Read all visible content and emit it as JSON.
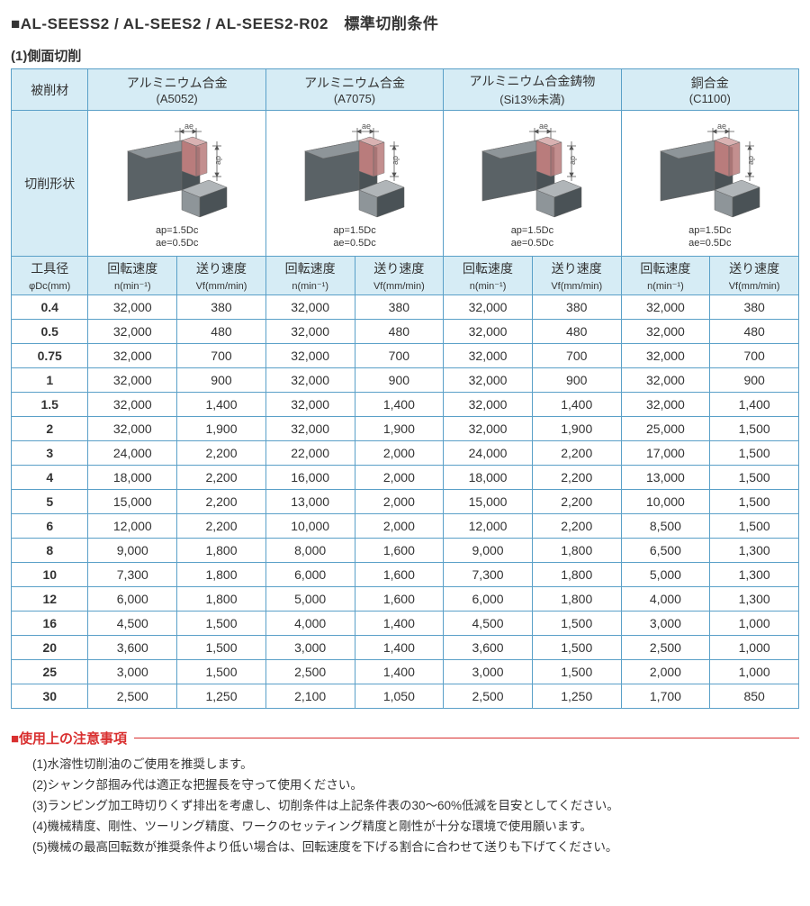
{
  "title": "■AL-SEESS2 / AL-SEES2 / AL-SEES2-R02　標準切削条件",
  "section": "(1)側面切削",
  "table": {
    "row_labels": {
      "material": "被削材",
      "shape": "切削形状",
      "tool_dia": "工具径",
      "tool_dia_unit": "φDc(mm)"
    },
    "col_headers": {
      "rpm": "回転速度",
      "rpm_unit": "n(min⁻¹)",
      "feed": "送り速度",
      "feed_unit": "Vf(mm/min)"
    },
    "materials": [
      {
        "name": "アルミニウム合金",
        "sub": "(A5052)"
      },
      {
        "name": "アルミニウム合金",
        "sub": "(A7075)"
      },
      {
        "name": "アルミニウム合金鋳物",
        "sub": "(Si13%未満)"
      },
      {
        "name": "銅合金",
        "sub": "(C1100)"
      }
    ],
    "shape_caption": {
      "l1": "ap=1.5Dc",
      "l2": "ae=0.5Dc"
    },
    "diagram_labels": {
      "ae": "ae",
      "ap": "ap"
    },
    "diagram_colors": {
      "block_top": "#8e9599",
      "block_front": "#5a6266",
      "block_side": "#4a5256",
      "cut_body": "#b97c7c",
      "cut_top": "#d9b2b2",
      "step_top": "#b0b5b8",
      "step_front": "#8e9599",
      "outline": "#666666",
      "dim": "#555555"
    },
    "rows": [
      {
        "dia": "0.4",
        "v": [
          [
            "32,000",
            "380"
          ],
          [
            "32,000",
            "380"
          ],
          [
            "32,000",
            "380"
          ],
          [
            "32,000",
            "380"
          ]
        ]
      },
      {
        "dia": "0.5",
        "v": [
          [
            "32,000",
            "480"
          ],
          [
            "32,000",
            "480"
          ],
          [
            "32,000",
            "480"
          ],
          [
            "32,000",
            "480"
          ]
        ]
      },
      {
        "dia": "0.75",
        "v": [
          [
            "32,000",
            "700"
          ],
          [
            "32,000",
            "700"
          ],
          [
            "32,000",
            "700"
          ],
          [
            "32,000",
            "700"
          ]
        ]
      },
      {
        "dia": "1",
        "v": [
          [
            "32,000",
            "900"
          ],
          [
            "32,000",
            "900"
          ],
          [
            "32,000",
            "900"
          ],
          [
            "32,000",
            "900"
          ]
        ]
      },
      {
        "dia": "1.5",
        "v": [
          [
            "32,000",
            "1,400"
          ],
          [
            "32,000",
            "1,400"
          ],
          [
            "32,000",
            "1,400"
          ],
          [
            "32,000",
            "1,400"
          ]
        ]
      },
      {
        "dia": "2",
        "v": [
          [
            "32,000",
            "1,900"
          ],
          [
            "32,000",
            "1,900"
          ],
          [
            "32,000",
            "1,900"
          ],
          [
            "25,000",
            "1,500"
          ]
        ]
      },
      {
        "dia": "3",
        "v": [
          [
            "24,000",
            "2,200"
          ],
          [
            "22,000",
            "2,000"
          ],
          [
            "24,000",
            "2,200"
          ],
          [
            "17,000",
            "1,500"
          ]
        ]
      },
      {
        "dia": "4",
        "v": [
          [
            "18,000",
            "2,200"
          ],
          [
            "16,000",
            "2,000"
          ],
          [
            "18,000",
            "2,200"
          ],
          [
            "13,000",
            "1,500"
          ]
        ]
      },
      {
        "dia": "5",
        "v": [
          [
            "15,000",
            "2,200"
          ],
          [
            "13,000",
            "2,000"
          ],
          [
            "15,000",
            "2,200"
          ],
          [
            "10,000",
            "1,500"
          ]
        ]
      },
      {
        "dia": "6",
        "v": [
          [
            "12,000",
            "2,200"
          ],
          [
            "10,000",
            "2,000"
          ],
          [
            "12,000",
            "2,200"
          ],
          [
            "8,500",
            "1,500"
          ]
        ]
      },
      {
        "dia": "8",
        "v": [
          [
            "9,000",
            "1,800"
          ],
          [
            "8,000",
            "1,600"
          ],
          [
            "9,000",
            "1,800"
          ],
          [
            "6,500",
            "1,300"
          ]
        ]
      },
      {
        "dia": "10",
        "v": [
          [
            "7,300",
            "1,800"
          ],
          [
            "6,000",
            "1,600"
          ],
          [
            "7,300",
            "1,800"
          ],
          [
            "5,000",
            "1,300"
          ]
        ]
      },
      {
        "dia": "12",
        "v": [
          [
            "6,000",
            "1,800"
          ],
          [
            "5,000",
            "1,600"
          ],
          [
            "6,000",
            "1,800"
          ],
          [
            "4,000",
            "1,300"
          ]
        ]
      },
      {
        "dia": "16",
        "v": [
          [
            "4,500",
            "1,500"
          ],
          [
            "4,000",
            "1,400"
          ],
          [
            "4,500",
            "1,500"
          ],
          [
            "3,000",
            "1,000"
          ]
        ]
      },
      {
        "dia": "20",
        "v": [
          [
            "3,600",
            "1,500"
          ],
          [
            "3,000",
            "1,400"
          ],
          [
            "3,600",
            "1,500"
          ],
          [
            "2,500",
            "1,000"
          ]
        ]
      },
      {
        "dia": "25",
        "v": [
          [
            "3,000",
            "1,500"
          ],
          [
            "2,500",
            "1,400"
          ],
          [
            "3,000",
            "1,500"
          ],
          [
            "2,000",
            "1,000"
          ]
        ]
      },
      {
        "dia": "30",
        "v": [
          [
            "2,500",
            "1,250"
          ],
          [
            "2,100",
            "1,050"
          ],
          [
            "2,500",
            "1,250"
          ],
          [
            "1,700",
            "850"
          ]
        ]
      }
    ]
  },
  "notes": {
    "title": "■使用上の注意事項",
    "items": [
      "(1)水溶性切削油のご使用を推奨します。",
      "(2)シャンク部掴み代は適正な把握長を守って使用ください。",
      "(3)ランピング加工時切りくず排出を考慮し、切削条件は上記条件表の30～60%低減を目安としてください。",
      "(4)機械精度、剛性、ツーリング精度、ワークのセッティング精度と剛性が十分な環境で使用願います。",
      "(5)機械の最高回転数が推奨条件より低い場合は、回転速度を下げる割合に合わせて送りも下げてください。"
    ]
  },
  "border_color": "#5aa0c8",
  "header_bg": "#d6ecf5"
}
